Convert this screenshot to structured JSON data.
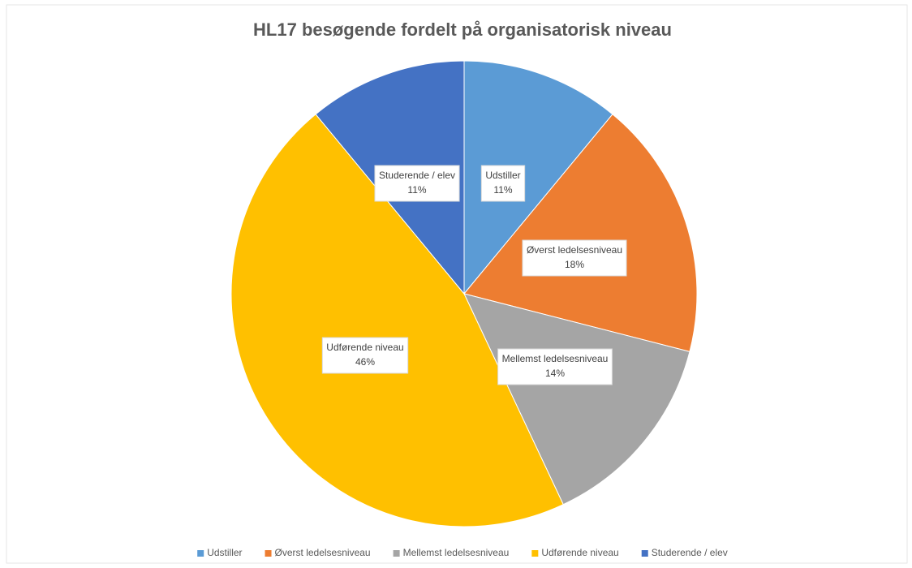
{
  "chart_data": {
    "type": "pie",
    "title": "HL17 besøgende fordelt på organisatorisk  niveau",
    "categories": [
      "Udstiller",
      "Øverst ledelsesniveau",
      "Mellemst ledelsesniveau",
      "Udførende niveau",
      "Studerende / elev"
    ],
    "values": [
      11,
      18,
      14,
      46,
      11
    ],
    "value_labels": [
      "11%",
      "18%",
      "14%",
      "46%",
      "11%"
    ],
    "colors": [
      "#5b9bd5",
      "#ed7d31",
      "#a5a5a5",
      "#ffc000",
      "#4472c4"
    ],
    "legend": "bottom"
  }
}
